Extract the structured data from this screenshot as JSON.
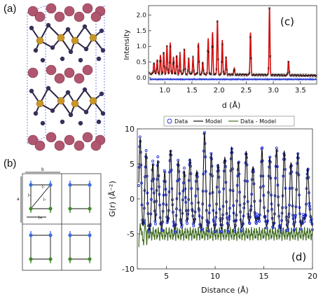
{
  "panels": {
    "a": {
      "label": "(a)"
    },
    "b": {
      "label": "(b)",
      "labels": {
        "b": "b",
        "a": "a",
        "j1": "J₁",
        "j2": "J₂",
        "j3": "J₃",
        "jab": "Jₐᵦ"
      }
    },
    "c": {
      "label": "(c)"
    },
    "d": {
      "label": "(d)"
    }
  },
  "colors": {
    "bi_atom": "#b0566e",
    "cu_atom": "#c9962a",
    "x_atom": "#3a2e5a",
    "data_points": "#1f2fd6",
    "model_line": "#111111",
    "fit_red": "#d11010",
    "diff_green": "#3f6b1f",
    "diff_blue": "#1f2fd6"
  },
  "chart_data": [
    {
      "id": "c",
      "type": "line",
      "title": "",
      "xlabel": "d (Å)",
      "ylabel": "Intensity",
      "xlim": [
        0.7,
        3.8
      ],
      "ylim": [
        -0.2,
        2.3
      ],
      "xticks": [
        "1.0",
        "1.5",
        "2.0",
        "2.5",
        "3.0",
        "3.5"
      ],
      "xtick_values": [
        1.0,
        1.5,
        2.0,
        2.5,
        3.0,
        3.5
      ],
      "yticks": [
        "0.0",
        "0.5",
        "1.0",
        "1.5",
        "2.0"
      ],
      "ytick_values": [
        0.0,
        0.5,
        1.0,
        1.5,
        2.0
      ],
      "background": 0.13,
      "diff_offset": -0.05,
      "peaks": [
        {
          "d": 0.8,
          "i": 0.35
        },
        {
          "d": 0.86,
          "i": 0.45
        },
        {
          "d": 0.92,
          "i": 0.6
        },
        {
          "d": 0.98,
          "i": 0.7
        },
        {
          "d": 1.04,
          "i": 0.9
        },
        {
          "d": 1.1,
          "i": 1.0
        },
        {
          "d": 1.16,
          "i": 0.55
        },
        {
          "d": 1.22,
          "i": 0.6
        },
        {
          "d": 1.28,
          "i": 0.65
        },
        {
          "d": 1.36,
          "i": 0.8
        },
        {
          "d": 1.44,
          "i": 0.5
        },
        {
          "d": 1.52,
          "i": 0.55
        },
        {
          "d": 1.62,
          "i": 1.0
        },
        {
          "d": 1.7,
          "i": 0.4
        },
        {
          "d": 1.8,
          "i": 1.15
        },
        {
          "d": 1.88,
          "i": 1.35
        },
        {
          "d": 1.97,
          "i": 1.75
        },
        {
          "d": 2.06,
          "i": 1.1
        },
        {
          "d": 2.13,
          "i": 0.55
        },
        {
          "d": 2.28,
          "i": 0.2
        },
        {
          "d": 2.58,
          "i": 1.35
        },
        {
          "d": 2.93,
          "i": 2.2
        },
        {
          "d": 3.28,
          "i": 0.45
        }
      ]
    },
    {
      "id": "d",
      "type": "line",
      "title": "",
      "xlabel": "Distance (Å)",
      "ylabel": "G(r) (Å⁻²)",
      "xlim": [
        2,
        20
      ],
      "ylim": [
        -10,
        10
      ],
      "xticks": [
        "5",
        "10",
        "15",
        "20"
      ],
      "xtick_values": [
        5,
        10,
        15,
        20
      ],
      "yticks": [
        "10",
        "5",
        "0",
        "-5",
        "-10"
      ],
      "ytick_values": [
        10,
        5,
        0,
        -5,
        -10
      ],
      "legend": [
        "Data",
        "Model",
        "Data - Model"
      ],
      "legend_position": "top",
      "diff_offset": -5,
      "gr_peaks": [
        {
          "r": 2.3,
          "a": 8.5
        },
        {
          "r": 2.9,
          "a": 6.0
        },
        {
          "r": 3.6,
          "a": 4.5
        },
        {
          "r": 4.1,
          "a": 5.5
        },
        {
          "r": 4.8,
          "a": 3.5
        },
        {
          "r": 5.4,
          "a": 7.5
        },
        {
          "r": 6.2,
          "a": 5.0
        },
        {
          "r": 6.8,
          "a": 4.0
        },
        {
          "r": 7.4,
          "a": 6.5
        },
        {
          "r": 8.1,
          "a": 4.5
        },
        {
          "r": 8.9,
          "a": 9.0
        },
        {
          "r": 9.6,
          "a": 6.0
        },
        {
          "r": 10.3,
          "a": 4.5
        },
        {
          "r": 11.0,
          "a": 5.5
        },
        {
          "r": 11.7,
          "a": 7.0
        },
        {
          "r": 12.4,
          "a": 5.0
        },
        {
          "r": 13.2,
          "a": 7.5
        },
        {
          "r": 13.9,
          "a": 5.5
        },
        {
          "r": 14.8,
          "a": 8.0
        },
        {
          "r": 15.6,
          "a": 6.0
        },
        {
          "r": 16.3,
          "a": 7.0
        },
        {
          "r": 17.1,
          "a": 6.5
        },
        {
          "r": 17.8,
          "a": 5.0
        },
        {
          "r": 18.5,
          "a": 6.5
        },
        {
          "r": 19.5,
          "a": 5.5
        }
      ]
    }
  ]
}
